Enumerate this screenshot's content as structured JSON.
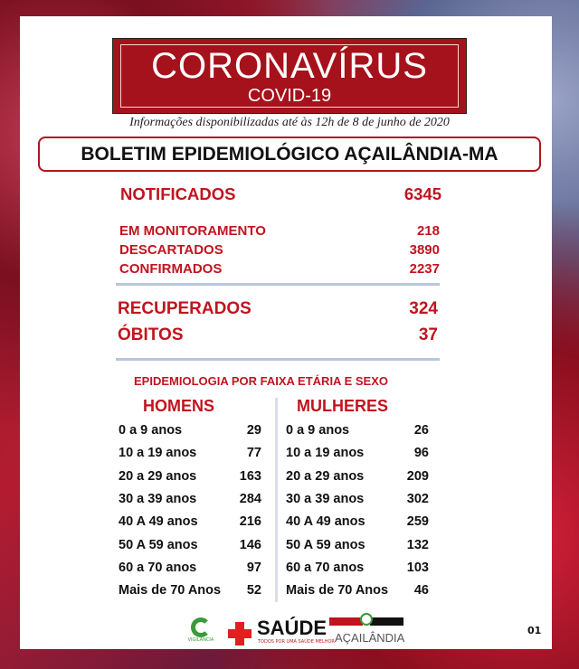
{
  "banner": {
    "title": "CORONAVÍRUS",
    "subtitle": "COVID-19"
  },
  "info": "Informações disponibilizadas até às 12h  de  8 de junho de 2020",
  "title": "BOLETIM EPIDEMIOLÓGICO AÇAILÂNDIA-MA",
  "notificados": {
    "label": "NOTIFICADOS",
    "value": "6345"
  },
  "stats": [
    {
      "label": "EM MONITORAMENTO",
      "value": "218"
    },
    {
      "label": "DESCARTADOS",
      "value": "3890"
    },
    {
      "label": "CONFIRMADOS",
      "value": "2237"
    }
  ],
  "outcomes": [
    {
      "label": "RECUPERADOS",
      "value": "324"
    },
    {
      "label": "ÓBITOS",
      "value": "37"
    }
  ],
  "section": "EPIDEMIOLOGIA POR FAIXA ETÁRIA E SEXO",
  "men": {
    "header": "HOMENS",
    "rows": [
      {
        "label": "0 a 9 anos",
        "value": "29"
      },
      {
        "label": "10 a 19 anos",
        "value": "77"
      },
      {
        "label": "20 a 29 anos",
        "value": "163"
      },
      {
        "label": "30 a 39 anos",
        "value": "284"
      },
      {
        "label": "40 A 49 anos",
        "value": "216"
      },
      {
        "label": "50 A 59 anos",
        "value": "146"
      },
      {
        "label": "60 a 70 anos",
        "value": "97"
      },
      {
        "label": "Mais de 70 Anos",
        "value": "52"
      }
    ]
  },
  "women": {
    "header": "MULHERES",
    "rows": [
      {
        "label": "0 a 9 anos",
        "value": "26"
      },
      {
        "label": "10 a 19 anos",
        "value": "96"
      },
      {
        "label": "20 a 29 anos",
        "value": "209"
      },
      {
        "label": "30 a 39 anos",
        "value": "302"
      },
      {
        "label": "40 A 49 anos",
        "value": "259"
      },
      {
        "label": "50 A 59 anos",
        "value": "132"
      },
      {
        "label": "60 a 70 anos",
        "value": "103"
      },
      {
        "label": "Mais de 70 Anos",
        "value": "46"
      }
    ]
  },
  "footer": {
    "logos": [
      "VIGILÂNCIA EM SAÚDE",
      "SECRETARIA DE SAÚDE",
      "PREFEITURA DE AÇAILÂNDIA"
    ],
    "saude": "SAÚDE",
    "saude_tag": "TODOS POR UMA SAÚDE MELHOR",
    "acailandia": "AÇAILÂNDIA",
    "page": "01"
  },
  "colors": {
    "accent": "#c0141f",
    "banner": "#a6121b",
    "divider": "#b9c6de"
  }
}
